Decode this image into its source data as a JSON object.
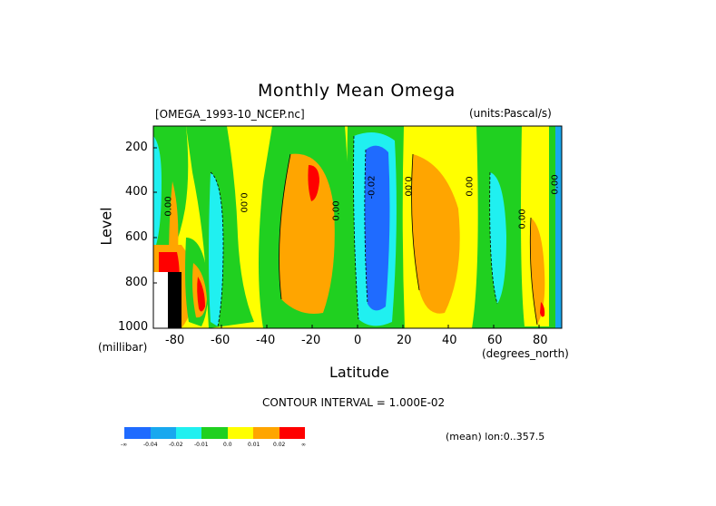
{
  "chart_data": {
    "type": "contour",
    "title": "Monthly Mean Omega",
    "dataset": "[OMEGA_1993-10_NCEP.nc]",
    "units": "(units:Pascal/s)",
    "xlabel": "Latitude",
    "xunits": "(degrees_north)",
    "ylabel": "Level",
    "yunits": "(millibar)",
    "xlim": [
      -90,
      90
    ],
    "ylim": [
      1000,
      100
    ],
    "xticks": [
      "-80",
      "-60",
      "-40",
      "-20",
      "0",
      "20",
      "40",
      "60",
      "80"
    ],
    "yticks": [
      "200",
      "400",
      "600",
      "800",
      "1000"
    ],
    "contour_interval_label": "CONTOUR INTERVAL = 1.000E-02",
    "mean_label": "(mean) lon:0..357.5",
    "contour_labels": [
      "0.00",
      "0.00",
      "0.00",
      "-0.02",
      "0.00",
      "0.00",
      "0.00",
      "0.00"
    ],
    "colorbar": {
      "colors": [
        "#1f6bff",
        "#18a8ef",
        "#20f0f0",
        "#20d020",
        "#ffff00",
        "#ffa500",
        "#ff0000"
      ],
      "labels": [
        "-∞",
        "-0.04",
        "-0.02",
        "-0.01",
        "0.0",
        "0.01",
        "0.02",
        "∞"
      ]
    },
    "columns": [
      {
        "lat": -90,
        "class": "green",
        "from": 100,
        "to": 1000
      },
      {
        "lat": -50,
        "class": "cyan",
        "from": 380,
        "to": 870
      },
      {
        "lat": -22,
        "class": "orange",
        "from": 250,
        "to": 870
      },
      {
        "lat": -20,
        "class": "red",
        "from": 260,
        "to": 420
      },
      {
        "lat": 10,
        "class": "cyan",
        "from": 100,
        "to": 1000
      },
      {
        "lat": 10,
        "class": "blue",
        "from": 160,
        "to": 960
      },
      {
        "lat": 40,
        "class": "orange",
        "from": 180,
        "to": 900
      },
      {
        "lat": 62,
        "class": "cyan",
        "from": 220,
        "to": 880
      },
      {
        "lat": 82,
        "class": "orange",
        "from": 500,
        "to": 1000
      }
    ]
  }
}
